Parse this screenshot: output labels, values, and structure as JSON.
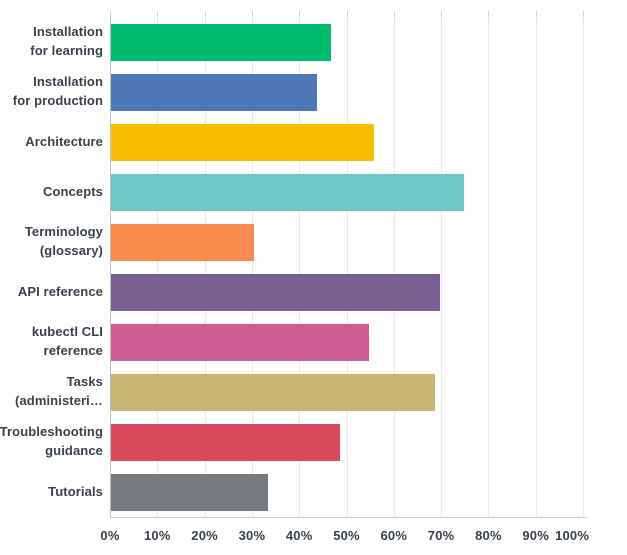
{
  "colors": {
    "background": "#ffffff",
    "text": "#39424c",
    "gridline": "#e9e9e9",
    "axis_line": "#c9cccf",
    "zero_line": "#bcc0c4"
  },
  "chart_data": {
    "type": "bar",
    "orientation": "horizontal",
    "title": "",
    "xlabel": "",
    "ylabel": "",
    "categories": [
      "Installation\nfor learning",
      "Installation\nfor production",
      "Architecture",
      "Concepts",
      "Terminology\n(glossary)",
      "API reference",
      "kubectl CLI\nreference",
      "Tasks\n(administeri…",
      "Troubleshooting\nguidance",
      "Tutorials"
    ],
    "values": [
      46.5,
      43.6,
      55.6,
      74.6,
      30.3,
      69.6,
      54.5,
      68.6,
      48.4,
      33.2
    ],
    "unit": "%",
    "bar_colors": [
      "#00bb6e",
      "#4c79b5",
      "#f8bc00",
      "#6ec6c8",
      "#fa8a4e",
      "#7a5f94",
      "#ce5e92",
      "#c8b573",
      "#d94b5c",
      "#75797e"
    ],
    "xlim": [
      0,
      100
    ],
    "x_ticks": [
      "0%",
      "10%",
      "20%",
      "30%",
      "40%",
      "50%",
      "60%",
      "70%",
      "80%",
      "90%",
      "100%"
    ],
    "grid": true,
    "legend": false
  }
}
